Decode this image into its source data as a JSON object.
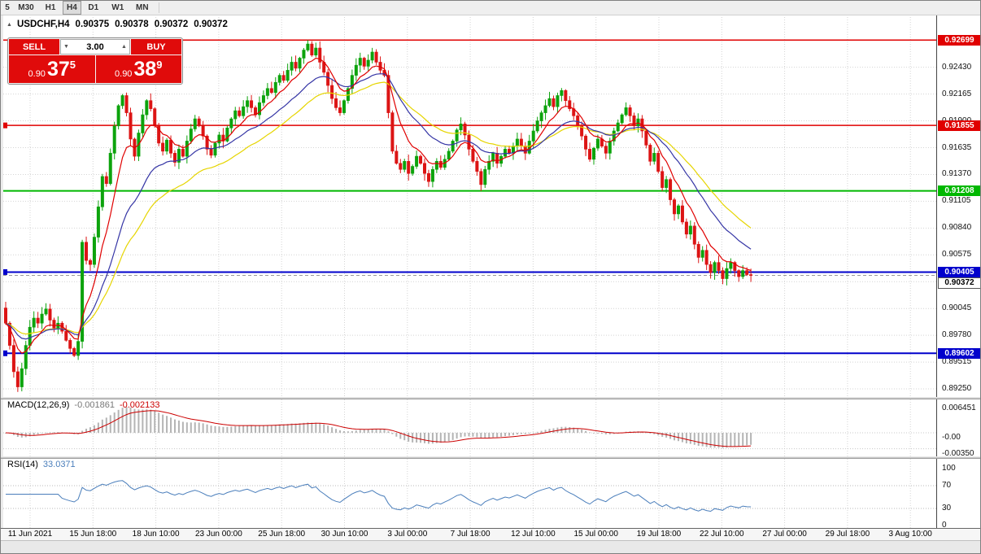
{
  "toolbar": {
    "timeframes": [
      "5",
      "M30",
      "H1",
      "H4",
      "D1",
      "W1",
      "MN"
    ],
    "active_index": 3
  },
  "icons": {
    "collapse": "▲",
    "vol_down": "▼",
    "vol_up": "▲"
  },
  "chart": {
    "symbol_period": "USDCHF,H4",
    "open": "0.90375",
    "high": "0.90378",
    "low": "0.90372",
    "close": "0.90372"
  },
  "trade": {
    "sell_label": "SELL",
    "buy_label": "BUY",
    "volume": "3.00",
    "sell_price": {
      "prefix": "0.90",
      "big": "37",
      "sup": "5"
    },
    "buy_price": {
      "prefix": "0.90",
      "big": "38",
      "sup": "9"
    }
  },
  "macd": {
    "label": "MACD(12,26,9)",
    "value_main": "-0.001861",
    "value_signal": "-0.002133",
    "axis_labels": [
      "0.006451",
      "-0.00",
      "-0.00350"
    ]
  },
  "rsi": {
    "label": "RSI(14)",
    "value": "33.0371",
    "axis_labels": [
      "100",
      "70",
      "30",
      "0"
    ]
  },
  "chart_data": {
    "type": "candlestick",
    "symbol": "USDCHF",
    "timeframe": "H4",
    "current_price": 0.90372,
    "price_axis_range": [
      0.8917,
      0.9295
    ],
    "price_ticks": [
      "0.92430",
      "0.92165",
      "0.91900",
      "0.91635",
      "0.91370",
      "0.91105",
      "0.90840",
      "0.90575",
      "0.90310",
      "0.90045",
      "0.89780",
      "0.89515",
      "0.89250"
    ],
    "h_lines": [
      {
        "price": 0.92699,
        "label": "0.92699",
        "color": "#e00000",
        "width": 1.5,
        "chip": false
      },
      {
        "price": 0.91855,
        "label": "0.91855",
        "color": "#e00000",
        "width": 1.5,
        "chip": true
      },
      {
        "price": 0.91208,
        "label": "0.91208",
        "color": "#00b800",
        "width": 2,
        "chip": false
      },
      {
        "price": 0.90405,
        "label": "0.90405",
        "color": "#0000cc",
        "width": 2,
        "chip": true
      },
      {
        "price": 0.89602,
        "label": "0.89602",
        "color": "#0000cc",
        "width": 2,
        "chip": true
      }
    ],
    "time_labels": [
      "11 Jun 2021",
      "15 Jun 18:00",
      "18 Jun 10:00",
      "23 Jun 00:00",
      "25 Jun 18:00",
      "30 Jun 10:00",
      "3 Jul 00:00",
      "7 Jul 18:00",
      "12 Jul 10:00",
      "15 Jul 00:00",
      "19 Jul 18:00",
      "22 Jul 10:00",
      "27 Jul 00:00",
      "29 Jul 18:00",
      "3 Aug 10:00"
    ],
    "first_open": 0.9005,
    "closes": [
      0.899,
      0.8968,
      0.8942,
      0.8927,
      0.8945,
      0.8968,
      0.8986,
      0.8995,
      0.899,
      0.8999,
      0.9004,
      0.8993,
      0.8985,
      0.899,
      0.8982,
      0.8973,
      0.8965,
      0.8958,
      0.8972,
      0.907,
      0.9052,
      0.9048,
      0.9075,
      0.9105,
      0.9135,
      0.9128,
      0.9158,
      0.9185,
      0.9205,
      0.9215,
      0.9198,
      0.9172,
      0.9155,
      0.9178,
      0.9196,
      0.921,
      0.9202,
      0.9185,
      0.9168,
      0.916,
      0.9171,
      0.9158,
      0.9149,
      0.9162,
      0.9155,
      0.917,
      0.9182,
      0.9192,
      0.9185,
      0.9175,
      0.9162,
      0.9156,
      0.9168,
      0.9176,
      0.917,
      0.9183,
      0.9192,
      0.92,
      0.9195,
      0.9204,
      0.921,
      0.9203,
      0.9196,
      0.9208,
      0.9215,
      0.9222,
      0.9218,
      0.9228,
      0.9235,
      0.923,
      0.924,
      0.9248,
      0.9242,
      0.9252,
      0.926,
      0.9266,
      0.9255,
      0.9262,
      0.9248,
      0.9238,
      0.9225,
      0.9212,
      0.9203,
      0.9198,
      0.921,
      0.9222,
      0.9235,
      0.9245,
      0.9252,
      0.9244,
      0.925,
      0.9258,
      0.9248,
      0.924,
      0.9235,
      0.9198,
      0.916,
      0.9148,
      0.9142,
      0.915,
      0.9138,
      0.9145,
      0.9155,
      0.9148,
      0.9138,
      0.913,
      0.9142,
      0.915,
      0.9144,
      0.9152,
      0.916,
      0.917,
      0.9181,
      0.9187,
      0.9176,
      0.9162,
      0.915,
      0.914,
      0.9127,
      0.9142,
      0.915,
      0.9158,
      0.9148,
      0.9155,
      0.9162,
      0.9158,
      0.9165,
      0.9172,
      0.9165,
      0.9158,
      0.917,
      0.918,
      0.919,
      0.9198,
      0.9205,
      0.9212,
      0.9204,
      0.9215,
      0.922,
      0.921,
      0.9202,
      0.9195,
      0.9185,
      0.9175,
      0.9162,
      0.9152,
      0.9163,
      0.9172,
      0.9165,
      0.9158,
      0.917,
      0.918,
      0.9188,
      0.9196,
      0.9203,
      0.9195,
      0.9185,
      0.9192,
      0.918,
      0.9166,
      0.915,
      0.9158,
      0.914,
      0.9124,
      0.9132,
      0.9112,
      0.9098,
      0.9106,
      0.909,
      0.9078,
      0.9086,
      0.9068,
      0.9055,
      0.9062,
      0.9048,
      0.904,
      0.905,
      0.9042,
      0.9034,
      0.9044,
      0.905,
      0.9042,
      0.9036,
      0.9042,
      0.9038,
      0.90372
    ],
    "special_wicks": {
      "3": {
        "low": 0.8922
      },
      "75": {
        "high": 0.92699
      },
      "118": {
        "low": 0.91205
      },
      "178": {
        "low": 0.90285
      }
    },
    "candle_colors": {
      "up": "#0ca30c",
      "down": "#dc1414"
    },
    "moving_averages": [
      {
        "period": 8,
        "color": "#e00000"
      },
      {
        "period": 20,
        "color": "#3535a5"
      },
      {
        "period": 32,
        "color": "#e6d500"
      }
    ],
    "macd_settings": {
      "fast": 12,
      "slow": 26,
      "signal": 9,
      "hist_color": "#b4b4b4",
      "signal_color": "#cc0000"
    },
    "rsi_settings": {
      "period": 14,
      "color": "#4a7ebb",
      "levels": [
        70,
        30
      ]
    }
  }
}
